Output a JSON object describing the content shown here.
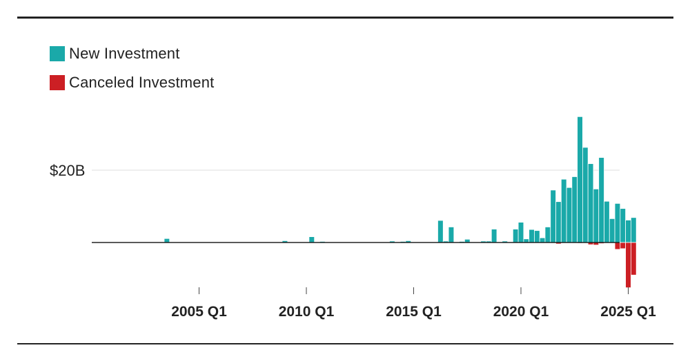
{
  "legend": {
    "new_label": "New Investment",
    "canceled_label": "Canceled Investment"
  },
  "colors": {
    "new": "#1aa9a9",
    "canceled": "#cc1f24",
    "gridline": "#dddddd",
    "axis": "#222222",
    "rule": "#222222"
  },
  "chart_data": {
    "type": "bar",
    "title": "",
    "xlabel": "",
    "ylabel": "",
    "ylim": [
      -13,
      35
    ],
    "y_unit": "billion USD",
    "y_ticks": [
      {
        "value": 20,
        "label": "$20B"
      }
    ],
    "x_ticks": [
      "2005 Q1",
      "2010 Q1",
      "2015 Q1",
      "2020 Q1",
      "2025 Q1"
    ],
    "grid": "horizontal",
    "legend_position": "top-left",
    "series": [
      {
        "name": "New Investment",
        "color": "#1aa9a9",
        "points": [
          [
            "2003 Q3",
            1.1
          ],
          [
            "2009 Q1",
            0.5
          ],
          [
            "2010 Q2",
            1.6
          ],
          [
            "2010 Q4",
            0.3
          ],
          [
            "2014 Q1",
            0.4
          ],
          [
            "2014 Q3",
            0.3
          ],
          [
            "2014 Q4",
            0.5
          ],
          [
            "2016 Q2",
            6.1
          ],
          [
            "2016 Q3",
            0.4
          ],
          [
            "2016 Q4",
            4.3
          ],
          [
            "2017 Q2",
            0.3
          ],
          [
            "2017 Q3",
            0.9
          ],
          [
            "2018 Q2",
            0.4
          ],
          [
            "2018 Q3",
            0.4
          ],
          [
            "2018 Q4",
            3.7
          ],
          [
            "2019 Q2",
            0.4
          ],
          [
            "2019 Q4",
            3.7
          ],
          [
            "2020 Q1",
            5.6
          ],
          [
            "2020 Q2",
            1.0
          ],
          [
            "2020 Q3",
            3.6
          ],
          [
            "2020 Q4",
            3.3
          ],
          [
            "2021 Q1",
            1.3
          ],
          [
            "2021 Q2",
            4.3
          ],
          [
            "2021 Q3",
            14.5
          ],
          [
            "2021 Q4",
            11.3
          ],
          [
            "2022 Q1",
            17.5
          ],
          [
            "2022 Q2",
            15.2
          ],
          [
            "2022 Q3",
            18.2
          ],
          [
            "2022 Q4",
            34.8
          ],
          [
            "2023 Q1",
            26.3
          ],
          [
            "2023 Q2",
            21.8
          ],
          [
            "2023 Q3",
            14.8
          ],
          [
            "2023 Q4",
            23.5
          ],
          [
            "2024 Q1",
            11.4
          ],
          [
            "2024 Q2",
            6.6
          ],
          [
            "2024 Q3",
            10.8
          ],
          [
            "2024 Q4",
            9.4
          ],
          [
            "2025 Q1",
            6.2
          ],
          [
            "2025 Q2",
            6.9
          ]
        ]
      },
      {
        "name": "Canceled Investment",
        "color": "#cc1f24",
        "points": [
          [
            "2021 Q4",
            -0.4
          ],
          [
            "2022 Q4",
            -0.2
          ],
          [
            "2023 Q2",
            -0.6
          ],
          [
            "2023 Q3",
            -0.7
          ],
          [
            "2023 Q4",
            -0.3
          ],
          [
            "2024 Q3",
            -1.9
          ],
          [
            "2024 Q4",
            -1.7
          ],
          [
            "2025 Q1",
            -12.5
          ],
          [
            "2025 Q2",
            -9.0
          ]
        ]
      }
    ]
  }
}
